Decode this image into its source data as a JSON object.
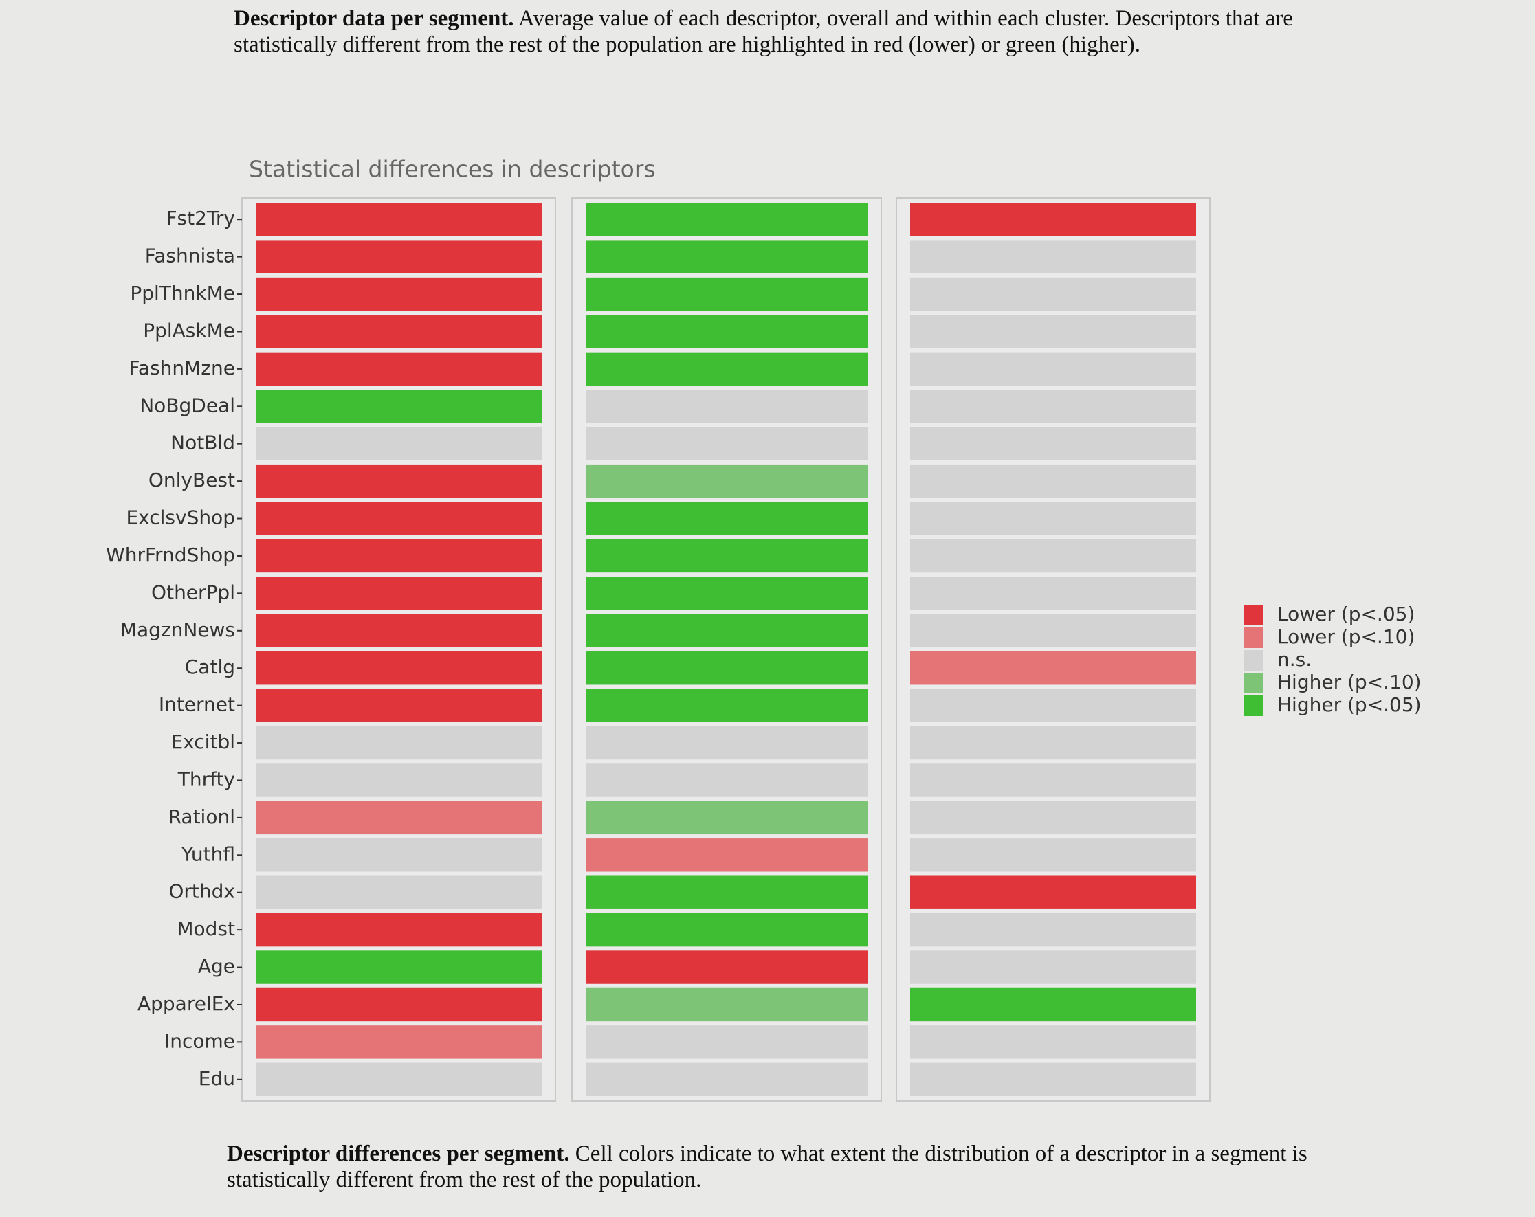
{
  "header": {
    "lead": "Descriptor data per segment.",
    "text": "Average value of each descriptor, overall and within each cluster. Descriptors that are statistically different from the rest of the population are highlighted in red (lower) or green (higher)."
  },
  "chart_data": {
    "type": "heatmap",
    "title": "Statistical differences in descriptors",
    "rows": [
      "Fst2Try",
      "Fashnista",
      "PplThnkMe",
      "PplAskMe",
      "FashnMzne",
      "NoBgDeal",
      "NotBld",
      "OnlyBest",
      "ExclsvShop",
      "WhrFrndShop",
      "OtherPpl",
      "MagznNews",
      "Catlg",
      "Internet",
      "Excitbl",
      "Thrfty",
      "Rationl",
      "Yuthfl",
      "Orthdx",
      "Modst",
      "Age",
      "ApparelEx",
      "Income",
      "Edu"
    ],
    "values": [
      [
        -2,
        -2,
        -2,
        -2,
        -2,
        2,
        0,
        -2,
        -2,
        -2,
        -2,
        -2,
        -2,
        -2,
        0,
        0,
        -1,
        0,
        0,
        -2,
        2,
        -2,
        -1,
        0
      ],
      [
        2,
        2,
        2,
        2,
        2,
        0,
        0,
        1,
        2,
        2,
        2,
        2,
        2,
        2,
        0,
        0,
        1,
        -1,
        2,
        2,
        -2,
        1,
        0,
        0
      ],
      [
        -2,
        0,
        0,
        0,
        0,
        0,
        0,
        0,
        0,
        0,
        0,
        0,
        -1,
        0,
        0,
        0,
        0,
        0,
        -2,
        0,
        0,
        2,
        0,
        0
      ]
    ],
    "legend": [
      {
        "value": -2,
        "label": "Lower (p<.05)",
        "color": "#e0353a"
      },
      {
        "value": -1,
        "label": "Lower (p<.10)",
        "color": "#e57476"
      },
      {
        "value": 0,
        "label": "n.s.",
        "color": "#d3d3d3"
      },
      {
        "value": 1,
        "label": "Higher (p<.10)",
        "color": "#7dc477"
      },
      {
        "value": 2,
        "label": "Higher (p<.05)",
        "color": "#3fbd33"
      }
    ]
  },
  "footer": {
    "lead": "Descriptor differences per segment.",
    "text": "Cell colors indicate to what extent the distribution of a descriptor in a segment is statistically different from the rest of the population."
  }
}
